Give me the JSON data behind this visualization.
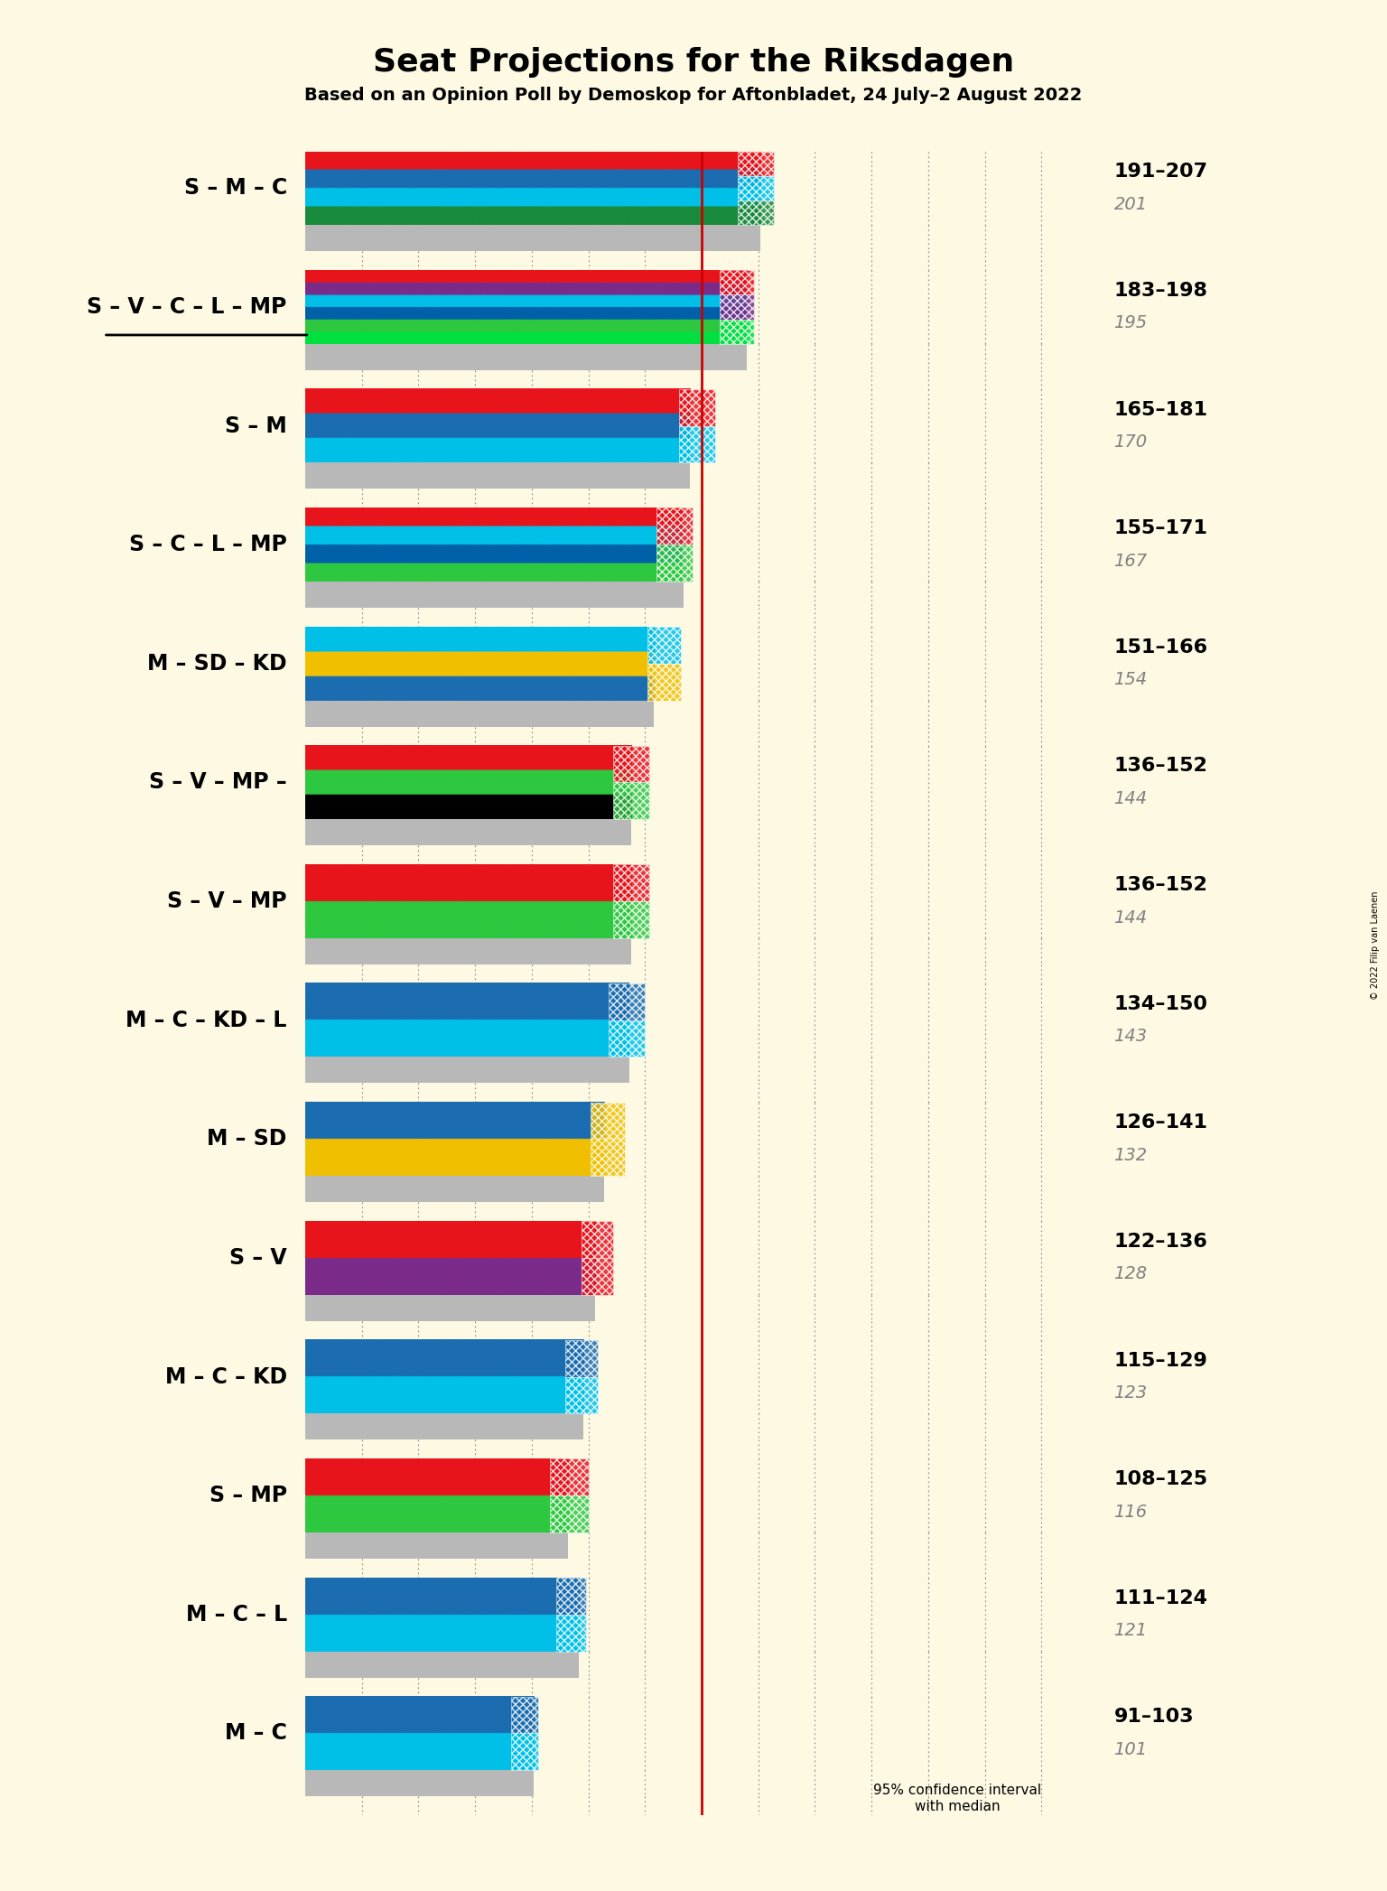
{
  "title": "Seat Projections for the Riksdagen",
  "subtitle": "Based on an Opinion Poll by Demoskop for Aftonbladet, 24 July–2 August 2022",
  "copyright": "© 2022 Filip van Laenen",
  "background_color": "#fdf9e3",
  "majority_line": 175,
  "x_max": 349,
  "coalitions": [
    {
      "label": "S – M – C",
      "underline": false,
      "ci_low": 191,
      "ci_high": 207,
      "median": 201,
      "last_result": 201,
      "colors": [
        "#e8141c",
        "#1b6db0",
        "#00c0e8",
        "#1a8a3c"
      ],
      "ci_colors": [
        "#e8141c",
        "#00c0e8",
        "#1a8a3c"
      ]
    },
    {
      "label": "S – V – C – L – MP",
      "underline": true,
      "ci_low": 183,
      "ci_high": 198,
      "median": 195,
      "last_result": 195,
      "colors": [
        "#e8141c",
        "#7b2b8a",
        "#00c0e8",
        "#0060a8",
        "#2ec840",
        "#00e040"
      ],
      "ci_colors": [
        "#e8141c",
        "#7b2b8a",
        "#00e040"
      ]
    },
    {
      "label": "S – M",
      "underline": false,
      "ci_low": 165,
      "ci_high": 181,
      "median": 170,
      "last_result": 170,
      "colors": [
        "#e8141c",
        "#1b6db0",
        "#00c0e8"
      ],
      "ci_colors": [
        "#e8141c",
        "#00c0e8"
      ]
    },
    {
      "label": "S – C – L – MP",
      "underline": false,
      "ci_low": 155,
      "ci_high": 171,
      "median": 167,
      "last_result": 167,
      "colors": [
        "#e8141c",
        "#00c0e8",
        "#0060a8",
        "#2ec840"
      ],
      "ci_colors": [
        "#e8141c",
        "#2ec840"
      ]
    },
    {
      "label": "M – SD – KD",
      "underline": false,
      "ci_low": 151,
      "ci_high": 166,
      "median": 154,
      "last_result": 154,
      "colors": [
        "#00c0e8",
        "#f0c000",
        "#1b6db0"
      ],
      "ci_colors": [
        "#00c0e8",
        "#f0c000"
      ]
    },
    {
      "label": "S – V – MP –",
      "underline": false,
      "ci_low": 136,
      "ci_high": 152,
      "median": 144,
      "last_result": 144,
      "colors": [
        "#e8141c",
        "#2ec840",
        "#000000"
      ],
      "ci_colors": [
        "#e8141c",
        "#2ec840"
      ]
    },
    {
      "label": "S – V – MP",
      "underline": false,
      "ci_low": 136,
      "ci_high": 152,
      "median": 144,
      "last_result": 144,
      "colors": [
        "#e8141c",
        "#2ec840"
      ],
      "ci_colors": [
        "#e8141c",
        "#2ec840"
      ]
    },
    {
      "label": "M – C – KD – L",
      "underline": false,
      "ci_low": 134,
      "ci_high": 150,
      "median": 143,
      "last_result": 143,
      "colors": [
        "#1b6db0",
        "#00c0e8"
      ],
      "ci_colors": [
        "#1b6db0",
        "#00c0e8"
      ]
    },
    {
      "label": "M – SD",
      "underline": false,
      "ci_low": 126,
      "ci_high": 141,
      "median": 132,
      "last_result": 132,
      "colors": [
        "#1b6db0",
        "#f0c000"
      ],
      "ci_colors": [
        "#f0c000",
        "#f0c000"
      ]
    },
    {
      "label": "S – V",
      "underline": false,
      "ci_low": 122,
      "ci_high": 136,
      "median": 128,
      "last_result": 128,
      "colors": [
        "#e8141c",
        "#7b2b8a"
      ],
      "ci_colors": [
        "#e8141c",
        "#e8141c"
      ]
    },
    {
      "label": "M – C – KD",
      "underline": false,
      "ci_low": 115,
      "ci_high": 129,
      "median": 123,
      "last_result": 123,
      "colors": [
        "#1b6db0",
        "#00c0e8"
      ],
      "ci_colors": [
        "#1b6db0",
        "#00c0e8"
      ]
    },
    {
      "label": "S – MP",
      "underline": true,
      "ci_low": 108,
      "ci_high": 125,
      "median": 116,
      "last_result": 116,
      "colors": [
        "#e8141c",
        "#2ec840"
      ],
      "ci_colors": [
        "#e8141c",
        "#2ec840"
      ]
    },
    {
      "label": "M – C – L",
      "underline": false,
      "ci_low": 111,
      "ci_high": 124,
      "median": 121,
      "last_result": 121,
      "colors": [
        "#1b6db0",
        "#00c0e8"
      ],
      "ci_colors": [
        "#1b6db0",
        "#00c0e8"
      ]
    },
    {
      "label": "M – C",
      "underline": false,
      "ci_low": 91,
      "ci_high": 103,
      "median": 101,
      "last_result": 101,
      "colors": [
        "#1b6db0",
        "#00c0e8"
      ],
      "ci_colors": [
        "#1b6db0",
        "#00c0e8"
      ]
    }
  ],
  "gray_color": "#b8b8b8",
  "gray_dot_color": "#c8c8c8",
  "majority_line_color": "#cc0000",
  "grid_color": "#888888",
  "median_text_color": "#808080",
  "legend_dark_color": "#1a1a2e",
  "label_fontsize": 17,
  "range_fontsize": 16,
  "median_fontsize": 14,
  "title_fontsize": 26,
  "subtitle_fontsize": 14
}
